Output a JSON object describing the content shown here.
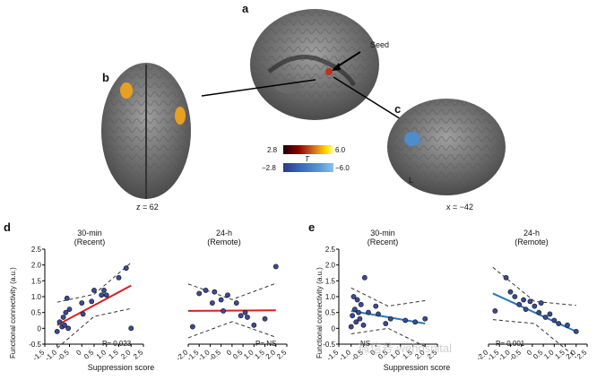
{
  "panels": {
    "a": "a",
    "b": "b",
    "c": "c",
    "d": "d",
    "e": "e"
  },
  "labels": {
    "seed": "Seed",
    "z_coord": "z = 62",
    "x_coord": "x = −42",
    "left": "L"
  },
  "colorbar": {
    "positive_min": "2.8",
    "positive_max": "6.0",
    "stat": "T",
    "negative_min": "−2.8",
    "negative_max": "−6.0",
    "positive_colors": [
      "#1a0000",
      "#8b0000",
      "#d2691e",
      "#ffd700",
      "#ffff99"
    ],
    "negative_colors": [
      "#2a3a8a",
      "#3d6fc0",
      "#5b9bd5",
      "#87c1f0"
    ]
  },
  "axis_labels": {
    "y": "Functional connectivity (a.u.)",
    "x": "Suppression score"
  },
  "plots": [
    {
      "title_line1": "30-min",
      "title_line2": "(Recent)",
      "p": "P= 0.023"
    },
    {
      "title_line1": "24-h",
      "title_line2": "(Remote)",
      "p": "P= NS"
    },
    {
      "title_line1": "30-min",
      "title_line2": "(Recent)",
      "p": "NS"
    },
    {
      "title_line1": "24-h",
      "title_line2": "(Remote)",
      "p": "P= 0.001"
    }
  ],
  "watermark": "微信号 wehospital",
  "chart_data": [
    {
      "type": "scatter",
      "title": "30-min (Recent)",
      "xlabel": "Suppression score",
      "ylabel": "Functional connectivity (a.u.)",
      "xlim": [
        -1.5,
        2.5
      ],
      "ylim": [
        -0.5,
        2.5
      ],
      "xticks": [
        "-1.5",
        "-1.0",
        "-0.5",
        "0",
        "0.5",
        "1.0",
        "1.5",
        "2.0",
        "2.5"
      ],
      "yticks": [
        "-0.5",
        "0",
        "0.5",
        "1.0",
        "1.5",
        "2.0",
        "2.5"
      ],
      "fit_color": "#d62020",
      "fit": [
        [
          -1.0,
          0.1
        ],
        [
          2.0,
          1.35
        ]
      ],
      "points": [
        [
          -1.0,
          -0.1
        ],
        [
          -0.9,
          0.2
        ],
        [
          -0.8,
          0.05
        ],
        [
          -0.75,
          0.35
        ],
        [
          -0.7,
          0.1
        ],
        [
          -0.65,
          0.5
        ],
        [
          -0.6,
          0.95
        ],
        [
          -0.55,
          0.0
        ],
        [
          -0.5,
          0.6
        ],
        [
          0.0,
          0.8
        ],
        [
          0.05,
          0.45
        ],
        [
          0.4,
          0.85
        ],
        [
          0.5,
          1.2
        ],
        [
          0.8,
          1.05
        ],
        [
          0.9,
          1.2
        ],
        [
          1.0,
          1.05
        ],
        [
          1.5,
          1.6
        ],
        [
          1.8,
          1.9
        ],
        [
          2.0,
          0.0
        ]
      ],
      "p": "P= 0.023"
    },
    {
      "type": "scatter",
      "title": "24-h (Remote)",
      "xlabel": "",
      "ylabel": "",
      "xlim": [
        -2.0,
        2.5
      ],
      "ylim": [
        -0.5,
        2.5
      ],
      "xticks": [
        "-2.0",
        "-1.5",
        "-1.0",
        "-0.5",
        "0",
        "0.5",
        "1.0",
        "1.5",
        "2.0",
        "2.5"
      ],
      "yticks": [],
      "fit_color": "#d62020",
      "fit": [
        [
          -2.0,
          0.55
        ],
        [
          2.0,
          0.57
        ]
      ],
      "points": [
        [
          -1.8,
          0.05
        ],
        [
          -1.5,
          1.1
        ],
        [
          -1.2,
          1.2
        ],
        [
          -0.9,
          0.8
        ],
        [
          -0.8,
          1.15
        ],
        [
          -0.5,
          0.9
        ],
        [
          -0.4,
          0.55
        ],
        [
          -0.2,
          1.05
        ],
        [
          0.2,
          0.8
        ],
        [
          0.4,
          0.4
        ],
        [
          0.6,
          0.5
        ],
        [
          0.7,
          0.35
        ],
        [
          1.0,
          0.1
        ],
        [
          1.5,
          0.3
        ],
        [
          2.0,
          1.95
        ]
      ],
      "p": "P= NS"
    },
    {
      "type": "scatter",
      "title": "30-min (Recent)",
      "xlabel": "",
      "ylabel": "Functional connectivity (a.u.)",
      "xlim": [
        -1.5,
        2.5
      ],
      "ylim": [
        -0.5,
        2.5
      ],
      "xticks": [
        "-1.5",
        "-1.0",
        "-0.5",
        "0",
        "0.5",
        "1.0",
        "1.5",
        "2.0",
        "2.5"
      ],
      "yticks": [
        "-0.5",
        "0",
        "0.5",
        "1.0",
        "1.5",
        "2.0",
        "2.5"
      ],
      "fit_color": "#2a78b8",
      "fit": [
        [
          -1.0,
          0.55
        ],
        [
          2.0,
          0.15
        ]
      ],
      "points": [
        [
          -1.0,
          0.05
        ],
        [
          -0.95,
          0.4
        ],
        [
          -0.9,
          1.0
        ],
        [
          -0.85,
          0.6
        ],
        [
          -0.8,
          0.2
        ],
        [
          -0.75,
          0.9
        ],
        [
          -0.7,
          0.5
        ],
        [
          -0.65,
          0.3
        ],
        [
          -0.6,
          0.75
        ],
        [
          -0.5,
          0.1
        ],
        [
          -0.45,
          1.6
        ],
        [
          -0.3,
          0.5
        ],
        [
          0.0,
          0.7
        ],
        [
          0.1,
          0.45
        ],
        [
          0.4,
          0.15
        ],
        [
          0.6,
          0.3
        ],
        [
          1.2,
          0.25
        ],
        [
          1.6,
          0.2
        ],
        [
          2.0,
          0.3
        ]
      ],
      "p": "NS"
    },
    {
      "type": "scatter",
      "title": "24-h (Remote)",
      "xlabel": "",
      "ylabel": "",
      "xlim": [
        -2.0,
        2.5
      ],
      "ylim": [
        -0.5,
        2.5
      ],
      "xticks": [
        "-2.0",
        "-1.5",
        "-1.0",
        "-0.5",
        "0",
        "0.5",
        "1.0",
        "1.5",
        "2.0",
        "2.5"
      ],
      "yticks": [],
      "fit_color": "#2a78b8",
      "fit": [
        [
          -1.8,
          1.1
        ],
        [
          2.0,
          -0.1
        ]
      ],
      "points": [
        [
          -1.7,
          0.55
        ],
        [
          -1.2,
          1.6
        ],
        [
          -1.0,
          1.15
        ],
        [
          -0.8,
          1.0
        ],
        [
          -0.6,
          0.75
        ],
        [
          -0.4,
          0.9
        ],
        [
          -0.3,
          0.6
        ],
        [
          -0.1,
          0.85
        ],
        [
          0.1,
          0.7
        ],
        [
          0.3,
          0.5
        ],
        [
          0.4,
          0.8
        ],
        [
          0.6,
          0.35
        ],
        [
          0.8,
          0.45
        ],
        [
          1.0,
          0.25
        ],
        [
          1.2,
          0.15
        ],
        [
          1.6,
          0.1
        ],
        [
          2.0,
          -0.1
        ]
      ],
      "p": "P= 0.001"
    }
  ]
}
